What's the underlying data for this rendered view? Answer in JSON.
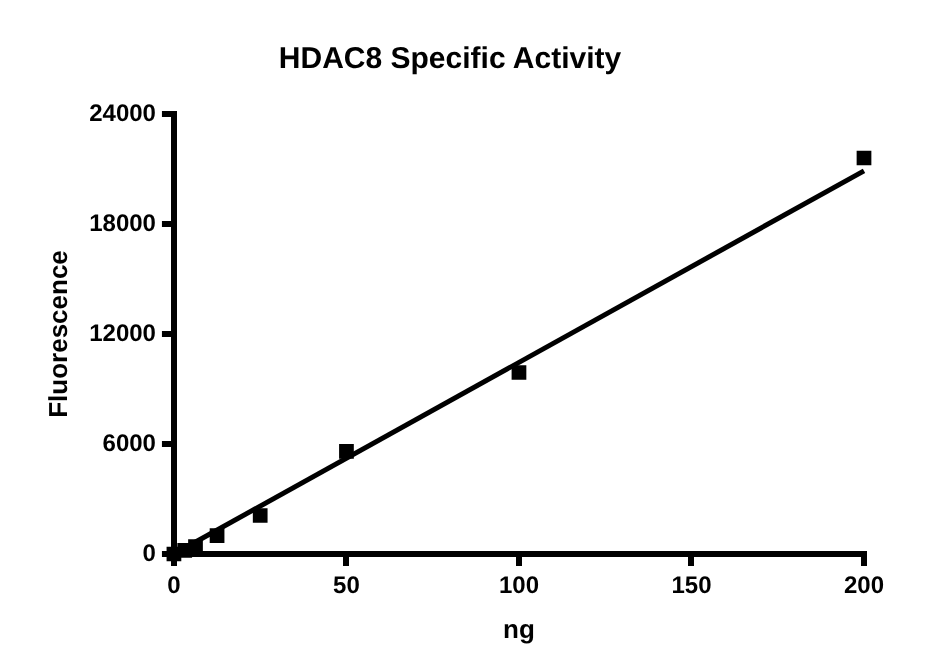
{
  "chart_data": {
    "type": "scatter",
    "title": "HDAC8 Specific Activity",
    "xlabel": "ng",
    "ylabel": "Fluorescence",
    "marker": "square",
    "grid": false,
    "legend": false,
    "xlim": [
      0,
      200
    ],
    "xticks": [
      0,
      50,
      100,
      150,
      200
    ],
    "ylim": [
      0,
      24000
    ],
    "yticks": [
      0,
      6000,
      12000,
      18000,
      24000
    ],
    "series": [
      {
        "color": "#000000",
        "x": [
          0,
          3.125,
          6.25,
          12.5,
          25,
          50,
          100,
          200
        ],
        "values": [
          0,
          200,
          400,
          1000,
          2100,
          5600,
          9900,
          21600
        ]
      },
      {
        "type": "line",
        "color": "#000000",
        "marker": "none",
        "x": [
          0,
          200
        ],
        "values": [
          0,
          20900
        ]
      }
    ]
  }
}
